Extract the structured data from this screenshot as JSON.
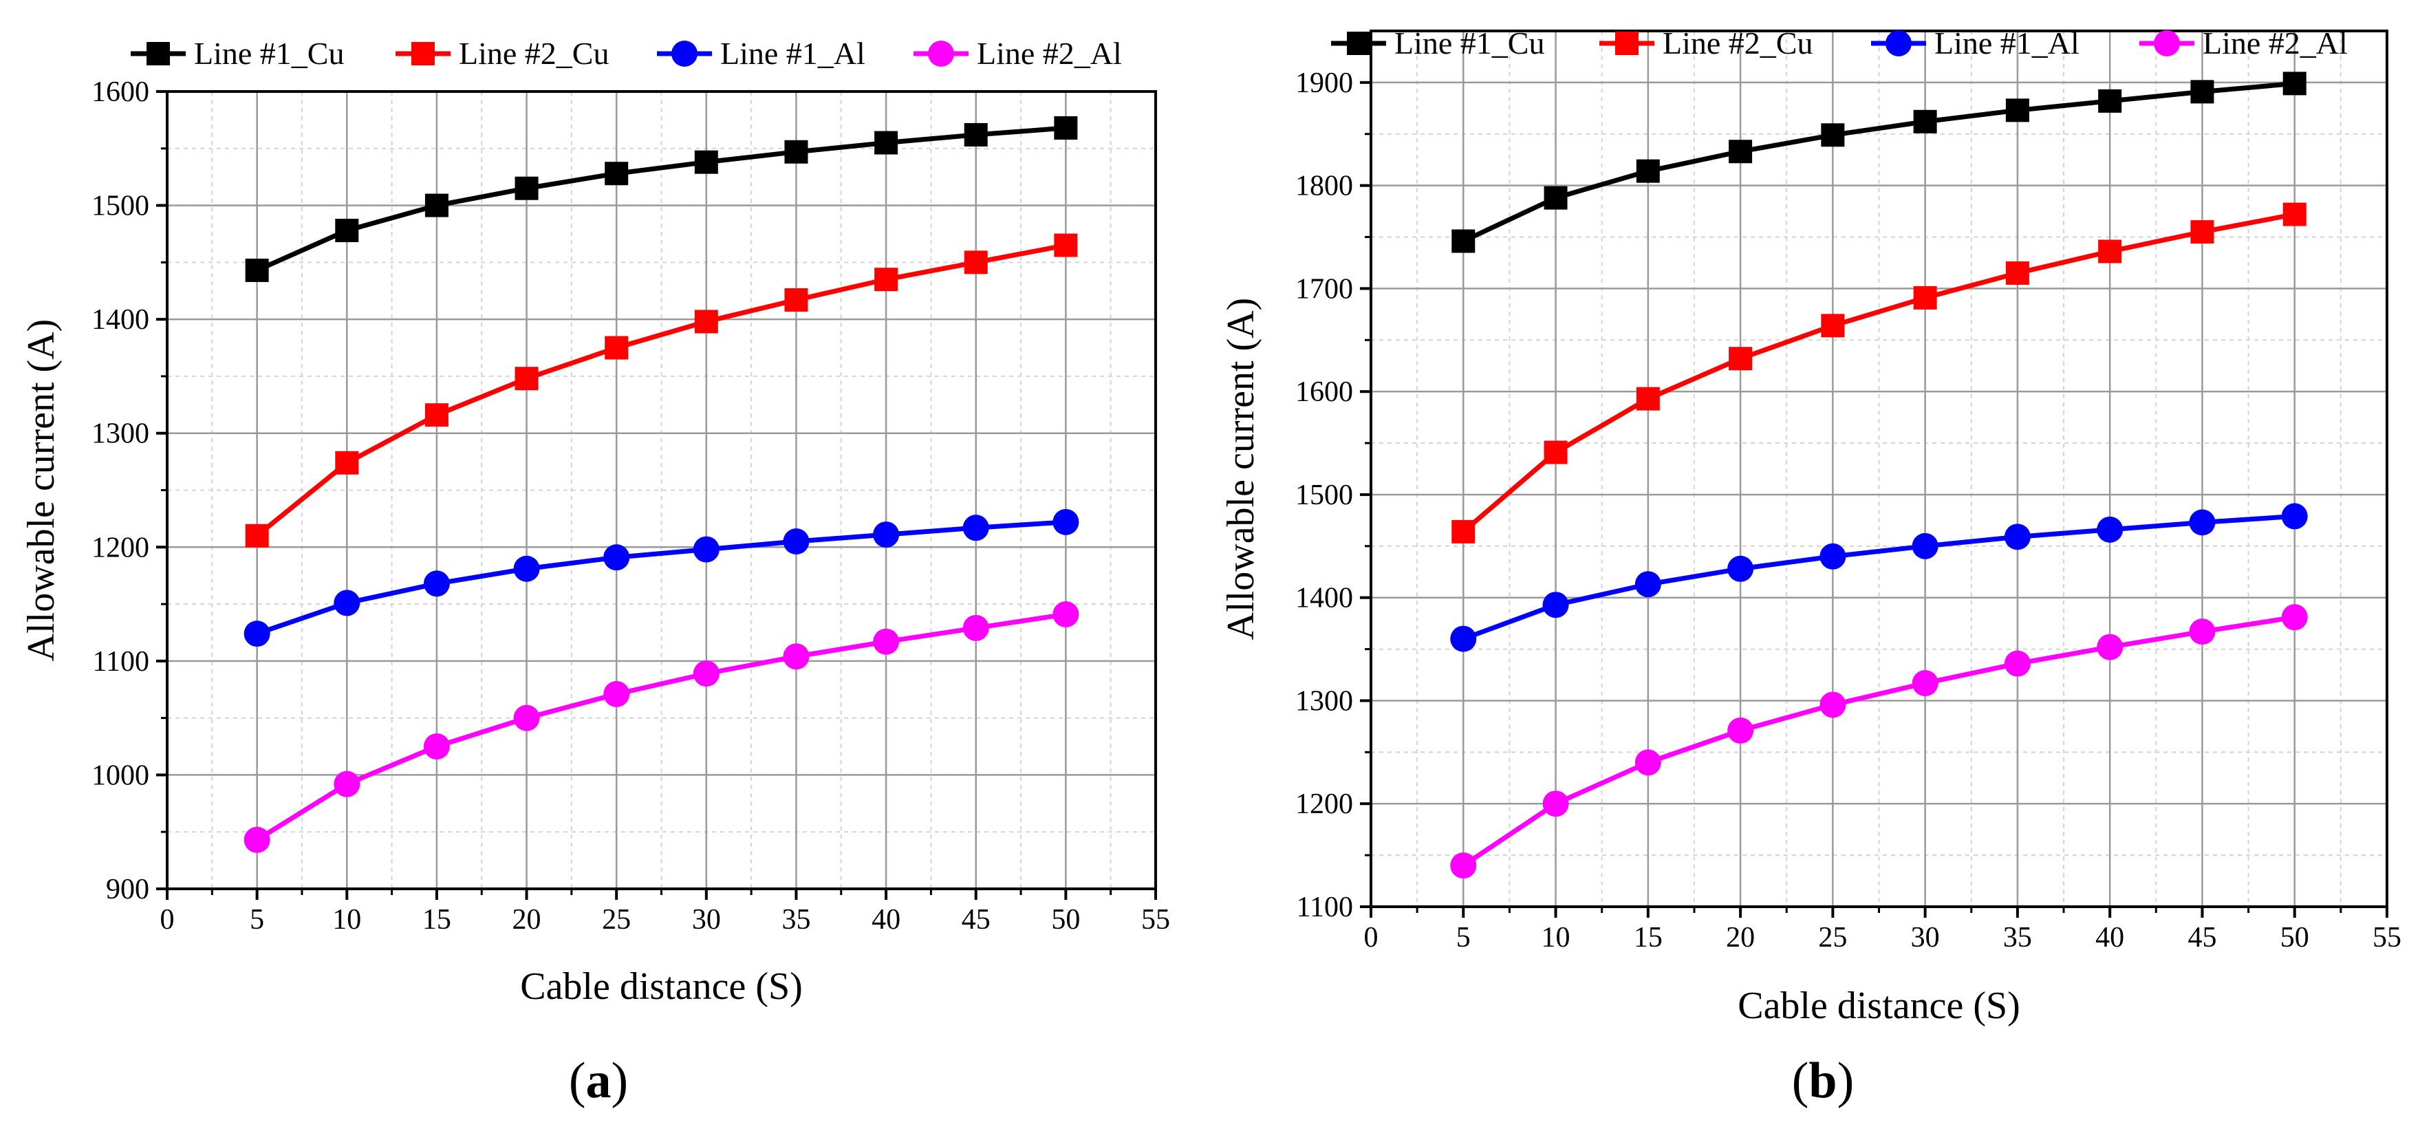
{
  "figure": {
    "panels": [
      {
        "label": "a"
      },
      {
        "label": "b"
      }
    ]
  },
  "chart_data": [
    {
      "type": "line",
      "panel_label": "a",
      "xlabel": "Cable distance (S)",
      "ylabel": "Allowable current (A)",
      "xlim": [
        0,
        55
      ],
      "ylim": [
        900,
        1600
      ],
      "x_ticks": [
        0,
        5,
        10,
        15,
        20,
        25,
        30,
        35,
        40,
        45,
        50,
        55
      ],
      "y_ticks": [
        900,
        1000,
        1100,
        1200,
        1300,
        1400,
        1500,
        1600
      ],
      "grid": true,
      "legend_position": "top",
      "x": [
        5,
        10,
        15,
        20,
        25,
        30,
        35,
        40,
        45,
        50
      ],
      "series": [
        {
          "name": "Line #1_Cu",
          "color": "#000000",
          "marker": "square",
          "values": [
            1443,
            1478,
            1500,
            1515,
            1528,
            1538,
            1547,
            1555,
            1562,
            1568
          ]
        },
        {
          "name": "Line #2_Cu",
          "color": "#ff0000",
          "marker": "square",
          "values": [
            1210,
            1274,
            1316,
            1348,
            1375,
            1398,
            1417,
            1435,
            1450,
            1465
          ]
        },
        {
          "name": "Line #1_Al",
          "color": "#0000ff",
          "marker": "circle",
          "values": [
            1124,
            1151,
            1168,
            1181,
            1191,
            1198,
            1205,
            1211,
            1217,
            1222
          ]
        },
        {
          "name": "Line #2_Al",
          "color": "#ff00ff",
          "marker": "circle",
          "values": [
            943,
            992,
            1025,
            1050,
            1071,
            1089,
            1104,
            1117,
            1129,
            1141
          ]
        }
      ]
    },
    {
      "type": "line",
      "panel_label": "b",
      "xlabel": "Cable distance (S)",
      "ylabel": "Allowable current (A)",
      "xlim": [
        0,
        55
      ],
      "ylim": [
        1100,
        1950
      ],
      "x_ticks": [
        0,
        5,
        10,
        15,
        20,
        25,
        30,
        35,
        40,
        45,
        50,
        55
      ],
      "y_ticks": [
        1100,
        1200,
        1300,
        1400,
        1500,
        1600,
        1700,
        1800,
        1900
      ],
      "grid": true,
      "legend_position": "top",
      "x": [
        5,
        10,
        15,
        20,
        25,
        30,
        35,
        40,
        45,
        50
      ],
      "series": [
        {
          "name": "Line #1_Cu",
          "color": "#000000",
          "marker": "square",
          "values": [
            1746,
            1788,
            1814,
            1833,
            1849,
            1862,
            1873,
            1882,
            1891,
            1899
          ]
        },
        {
          "name": "Line #2_Cu",
          "color": "#ff0000",
          "marker": "square",
          "values": [
            1464,
            1541,
            1593,
            1632,
            1664,
            1691,
            1715,
            1736,
            1755,
            1772
          ]
        },
        {
          "name": "Line #1_Al",
          "color": "#0000ff",
          "marker": "circle",
          "values": [
            1360,
            1393,
            1413,
            1428,
            1440,
            1450,
            1459,
            1466,
            1473,
            1479
          ]
        },
        {
          "name": "Line #2_Al",
          "color": "#ff00ff",
          "marker": "circle",
          "values": [
            1140,
            1200,
            1240,
            1271,
            1296,
            1317,
            1336,
            1352,
            1367,
            1381
          ]
        }
      ]
    }
  ]
}
